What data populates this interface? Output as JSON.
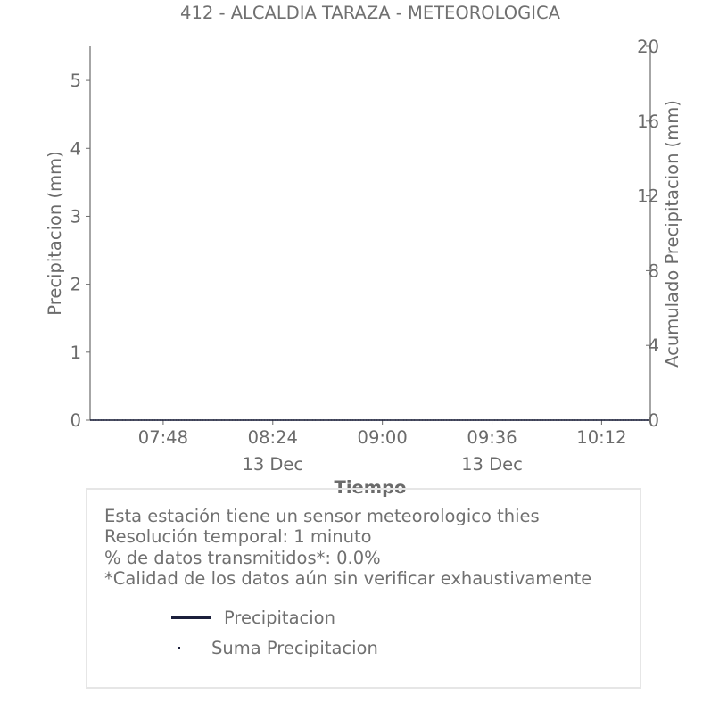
{
  "chart_data": {
    "type": "line",
    "title": "412 - ALCALDIA TARAZA - METEOROLOGICA",
    "xlabel": "Tiempo",
    "ylabel": "Precipitacion (mm)",
    "y2label": "Acumulado Precipitacion (mm)",
    "x_ticks": [
      "07:48",
      "08:24",
      "09:00",
      "09:36",
      "10:12"
    ],
    "x_date_labels": [
      {
        "tick": "08:24",
        "text": "13 Dec"
      },
      {
        "tick": "09:36",
        "text": "13 Dec"
      }
    ],
    "y_ticks": [
      0,
      1,
      2,
      3,
      4,
      5
    ],
    "ylim": [
      0,
      5.5
    ],
    "y2_ticks": [
      0,
      4,
      8,
      12,
      16,
      20
    ],
    "y2lim": [
      0,
      20
    ],
    "xlim": [
      "07:24",
      "10:28"
    ],
    "grid": false,
    "series": [
      {
        "name": "Precipitacion",
        "color": "#1b1f3b",
        "style": "line",
        "values": [
          0,
          0
        ]
      },
      {
        "name": "Suma Precipitacion",
        "color": "#1b1f3b",
        "style": "dots",
        "values": [
          0,
          0
        ]
      }
    ]
  },
  "info": {
    "lines": [
      "Esta estación tiene un sensor meteorologico thies",
      "Resolución temporal: 1 minuto",
      "% de datos transmitidos*: 0.0%",
      "*Calidad de los datos aún sin verificar exhaustivamente"
    ]
  }
}
